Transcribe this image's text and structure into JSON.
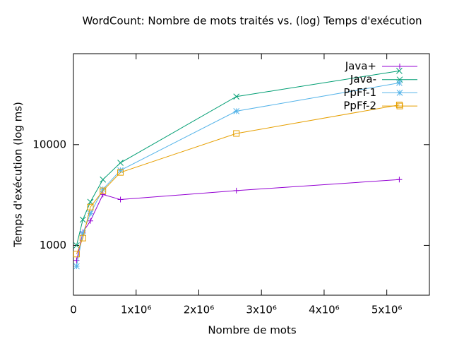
{
  "chart_data": {
    "type": "line",
    "title": "WordCount: Nombre de mots traités vs. (log) Temps d'exécution",
    "xlabel": "Nombre de mots",
    "ylabel": "Temps d'exécution (log ms)",
    "x": [
      50000,
      150000,
      270000,
      470000,
      750000,
      2600000,
      5200000
    ],
    "series": [
      {
        "name": "Java+",
        "color": "#9400d3",
        "marker": "plus",
        "values": [
          710,
          1350,
          1750,
          3200,
          2850,
          3500,
          4500
        ]
      },
      {
        "name": "Java-",
        "color": "#009e73",
        "marker": "cross",
        "values": [
          1000,
          1800,
          2700,
          4500,
          6600,
          30000,
          54000
        ]
      },
      {
        "name": "PpFf-1",
        "color": "#56b4e9",
        "marker": "star",
        "values": [
          620,
          1320,
          2070,
          3600,
          5560,
          21500,
          41000
        ]
      },
      {
        "name": "PpFf-2",
        "color": "#e69f00",
        "marker": "square",
        "values": [
          820,
          1180,
          2400,
          3480,
          5300,
          12900,
          24800
        ]
      }
    ],
    "xlim": [
      0,
      5680000
    ],
    "xticks": [
      0,
      {
        "value": 1000000,
        "label": "1x10⁶"
      },
      {
        "value": 2000000,
        "label": "2x10⁶"
      },
      {
        "value": 3000000,
        "label": "3x10⁶"
      },
      {
        "value": 4000000,
        "label": "4x10⁶"
      },
      {
        "value": 5000000,
        "label": "5x10⁶"
      }
    ],
    "ylim": [
      320,
      80000
    ],
    "yticks": [
      1000,
      10000
    ],
    "ylog": true,
    "legend": "top right"
  }
}
